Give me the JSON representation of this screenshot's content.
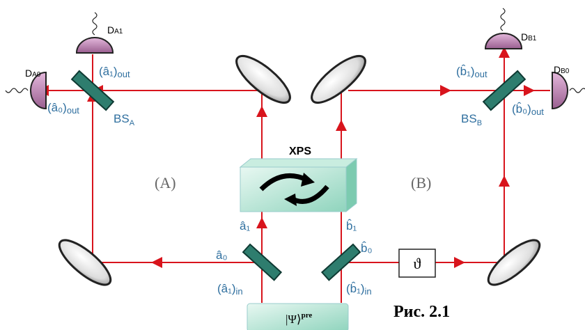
{
  "detectors": {
    "a1": {
      "main": "D",
      "sub": "A1"
    },
    "a0": {
      "main": "D",
      "sub": "A0"
    },
    "b1": {
      "main": "D",
      "sub": "B1"
    },
    "b0": {
      "main": "D",
      "sub": "B0"
    }
  },
  "beam_splitters": {
    "a": {
      "main": "BS",
      "sub": "A"
    },
    "b": {
      "main": "BS",
      "sub": "B"
    }
  },
  "modes": {
    "a1_out": {
      "main": "(â₁)",
      "sub": "out"
    },
    "a0_out": {
      "main": "(â₀)",
      "sub": "out"
    },
    "b1_out": {
      "main": "(b̂₁)",
      "sub": "out"
    },
    "b0_out": {
      "main": "(b̂₀)",
      "sub": "out"
    },
    "a1_in": {
      "main": "(â₁)",
      "sub": "in"
    },
    "b1_in": {
      "main": "(b̂₁)",
      "sub": "in"
    },
    "a1": "â₁",
    "b1": "b̂₁",
    "a0": "â₀",
    "b0": "b̂₀"
  },
  "xps": "XPS",
  "regions": {
    "a": "(A)",
    "b": "(B)"
  },
  "phase": "ϑ",
  "state": {
    "main": "|Ψ⟩",
    "sup": "pre"
  },
  "caption": "Рис. 2.1"
}
